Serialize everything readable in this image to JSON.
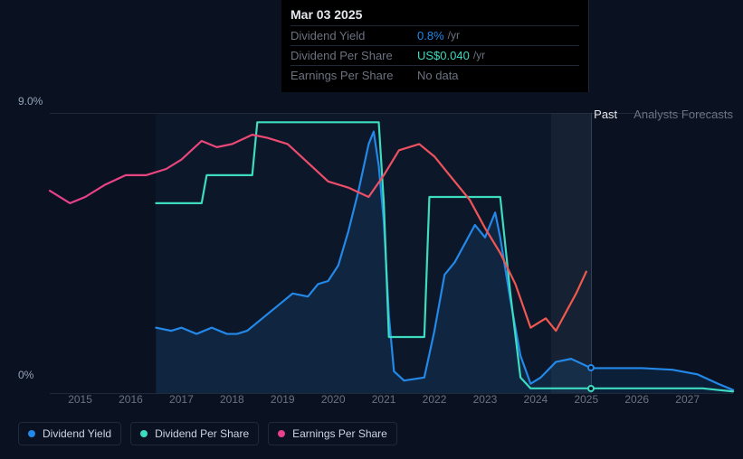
{
  "tooltip": {
    "date": "Mar 03 2025",
    "rows": [
      {
        "label": "Dividend Yield",
        "value": "0.8%",
        "unit": "/yr",
        "color": "#2388e7"
      },
      {
        "label": "Dividend Per Share",
        "value": "US$0.040",
        "unit": "/yr",
        "color": "#3ddbc0"
      },
      {
        "label": "Earnings Per Share",
        "value": "No data",
        "unit": "",
        "color": "#6b7280"
      }
    ]
  },
  "chart": {
    "type": "line",
    "background_color": "#0a1120",
    "grid_color": "#1f2937",
    "text_color": "#94a3b8",
    "y_axis": {
      "min": 0,
      "max": 9.0,
      "ticks": [
        {
          "value": 0,
          "label": "0%"
        },
        {
          "value": 9.0,
          "label": "9.0%"
        }
      ]
    },
    "x_axis": {
      "min": 2014.4,
      "max": 2027.9,
      "ticks": [
        2015,
        2016,
        2017,
        2018,
        2019,
        2020,
        2021,
        2022,
        2023,
        2024,
        2025,
        2026,
        2027
      ]
    },
    "past_region": {
      "start": 2016.5,
      "end": 2025.1
    },
    "hover_x": 2025.1,
    "hover_band": {
      "start": 2024.3,
      "end": 2025.1
    },
    "section_labels": {
      "past": "Past",
      "forecast": "Analysts Forecasts"
    },
    "markers": [
      {
        "x": 2025.1,
        "y": 0.8,
        "color": "#2388e7"
      },
      {
        "x": 2025.1,
        "y": 0.15,
        "color": "#3ddbc0"
      }
    ],
    "series": [
      {
        "name": "Dividend Yield",
        "color": "#2388e7",
        "fill": true,
        "fill_color": "rgba(35,136,231,0.12)",
        "line_width": 2.2,
        "data": [
          [
            2016.5,
            2.1
          ],
          [
            2016.8,
            2.0
          ],
          [
            2017.0,
            2.1
          ],
          [
            2017.3,
            1.9
          ],
          [
            2017.6,
            2.1
          ],
          [
            2017.9,
            1.9
          ],
          [
            2018.1,
            1.9
          ],
          [
            2018.3,
            2.0
          ],
          [
            2018.6,
            2.4
          ],
          [
            2018.9,
            2.8
          ],
          [
            2019.2,
            3.2
          ],
          [
            2019.5,
            3.1
          ],
          [
            2019.7,
            3.5
          ],
          [
            2019.9,
            3.6
          ],
          [
            2020.1,
            4.1
          ],
          [
            2020.3,
            5.2
          ],
          [
            2020.5,
            6.5
          ],
          [
            2020.7,
            8.0
          ],
          [
            2020.8,
            8.4
          ],
          [
            2020.9,
            7.3
          ],
          [
            2021.0,
            5.5
          ],
          [
            2021.1,
            2.5
          ],
          [
            2021.2,
            0.7
          ],
          [
            2021.4,
            0.4
          ],
          [
            2021.8,
            0.5
          ],
          [
            2022.0,
            2.0
          ],
          [
            2022.2,
            3.8
          ],
          [
            2022.4,
            4.2
          ],
          [
            2022.6,
            4.8
          ],
          [
            2022.8,
            5.4
          ],
          [
            2023.0,
            5.0
          ],
          [
            2023.2,
            5.8
          ],
          [
            2023.3,
            5.0
          ],
          [
            2023.5,
            3.0
          ],
          [
            2023.7,
            1.2
          ],
          [
            2023.9,
            0.3
          ],
          [
            2024.1,
            0.5
          ],
          [
            2024.4,
            1.0
          ],
          [
            2024.7,
            1.1
          ],
          [
            2025.1,
            0.8
          ],
          [
            2025.5,
            0.8
          ],
          [
            2026.1,
            0.8
          ],
          [
            2026.7,
            0.75
          ],
          [
            2027.2,
            0.6
          ],
          [
            2027.6,
            0.3
          ],
          [
            2027.9,
            0.1
          ]
        ]
      },
      {
        "name": "Dividend Per Share",
        "color": "#3ddbc0",
        "fill": false,
        "line_width": 2.2,
        "data": [
          [
            2016.5,
            6.1
          ],
          [
            2017.4,
            6.1
          ],
          [
            2017.5,
            7.0
          ],
          [
            2018.4,
            7.0
          ],
          [
            2018.5,
            8.7
          ],
          [
            2020.9,
            8.7
          ],
          [
            2021.0,
            6.1
          ],
          [
            2021.1,
            1.8
          ],
          [
            2021.8,
            1.8
          ],
          [
            2021.9,
            6.3
          ],
          [
            2023.3,
            6.3
          ],
          [
            2023.5,
            3.2
          ],
          [
            2023.7,
            0.5
          ],
          [
            2023.9,
            0.15
          ],
          [
            2025.1,
            0.15
          ],
          [
            2026.8,
            0.15
          ],
          [
            2027.3,
            0.15
          ],
          [
            2027.6,
            0.1
          ],
          [
            2027.9,
            0.05
          ]
        ]
      },
      {
        "name": "Earnings Per Share",
        "color": "#e7408c",
        "color_end": "#f05a4a",
        "fill": false,
        "line_width": 2.2,
        "data": [
          [
            2014.4,
            6.5
          ],
          [
            2014.8,
            6.1
          ],
          [
            2015.1,
            6.3
          ],
          [
            2015.5,
            6.7
          ],
          [
            2015.9,
            7.0
          ],
          [
            2016.3,
            7.0
          ],
          [
            2016.7,
            7.2
          ],
          [
            2017.0,
            7.5
          ],
          [
            2017.4,
            8.1
          ],
          [
            2017.7,
            7.9
          ],
          [
            2018.0,
            8.0
          ],
          [
            2018.4,
            8.3
          ],
          [
            2018.7,
            8.2
          ],
          [
            2019.1,
            8.0
          ],
          [
            2019.5,
            7.4
          ],
          [
            2019.9,
            6.8
          ],
          [
            2020.3,
            6.6
          ],
          [
            2020.7,
            6.3
          ],
          [
            2021.0,
            7.0
          ],
          [
            2021.3,
            7.8
          ],
          [
            2021.7,
            8.0
          ],
          [
            2022.0,
            7.6
          ],
          [
            2022.3,
            7.0
          ],
          [
            2022.7,
            6.2
          ],
          [
            2023.0,
            5.3
          ],
          [
            2023.3,
            4.5
          ],
          [
            2023.6,
            3.5
          ],
          [
            2023.9,
            2.1
          ],
          [
            2024.2,
            2.4
          ],
          [
            2024.4,
            2.0
          ],
          [
            2024.6,
            2.6
          ],
          [
            2024.8,
            3.2
          ],
          [
            2025.0,
            3.9
          ]
        ]
      }
    ]
  },
  "legend": [
    {
      "label": "Dividend Yield",
      "color": "#2388e7"
    },
    {
      "label": "Dividend Per Share",
      "color": "#3ddbc0"
    },
    {
      "label": "Earnings Per Share",
      "color": "#e7408c"
    }
  ]
}
